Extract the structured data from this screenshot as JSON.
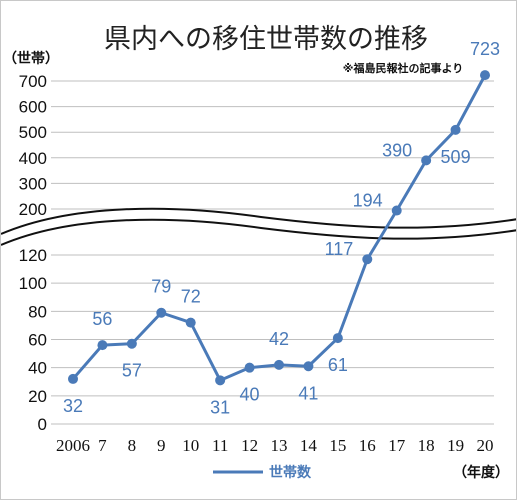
{
  "chart_data": {
    "type": "line",
    "title": "県内への移住世帯数の推移",
    "note": "※福島民報社の記事より",
    "ylabel": "（世帯）",
    "xlabel": "（年度）",
    "categories": [
      "2006",
      "7",
      "8",
      "9",
      "10",
      "11",
      "12",
      "13",
      "14",
      "15",
      "16",
      "17",
      "18",
      "19",
      "20"
    ],
    "series": [
      {
        "name": "世帯数",
        "values": [
          32,
          56,
          57,
          79,
          72,
          31,
          40,
          42,
          41,
          61,
          117,
          194,
          390,
          509,
          723
        ]
      }
    ],
    "axis_break": true,
    "y_ticks_lower": [
      0,
      20,
      40,
      60,
      80,
      100,
      120
    ],
    "y_ticks_upper": [
      200,
      300,
      400,
      500,
      600,
      700
    ],
    "grid": true,
    "legend_position": "bottom",
    "colors": {
      "series": "#4a7ab8",
      "grid": "#bfbfbf"
    }
  }
}
